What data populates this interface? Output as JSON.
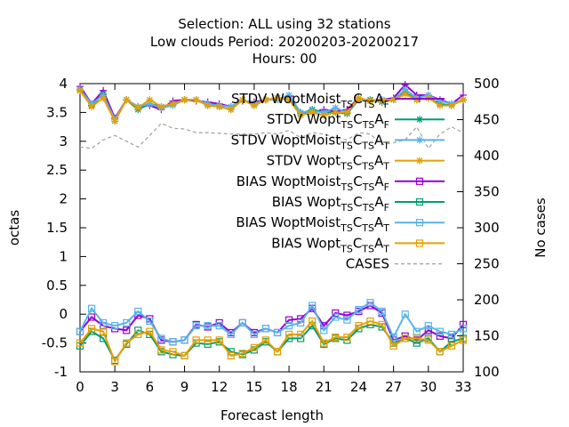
{
  "chart_data": {
    "type": "line",
    "title_lines": [
      "Selection: ALL using    32 stations",
      "Low clouds   Period: 20200203-20200217",
      "Hours:  00"
    ],
    "xlabel": "Forecast length",
    "ylabel": "octas",
    "y2label": "No cases",
    "xlim": [
      0,
      33
    ],
    "ylim": [
      -1,
      4
    ],
    "y2lim": [
      100,
      500
    ],
    "xticks": [
      "0",
      "3",
      "6",
      "9",
      "12",
      "15",
      "18",
      "21",
      "24",
      "27",
      "30",
      "33"
    ],
    "yticks": [
      "-1",
      "-0.5",
      "0",
      "0.5",
      "1",
      "1.5",
      "2",
      "2.5",
      "3",
      "3.5",
      "4"
    ],
    "y2ticks": [
      "100",
      "150",
      "200",
      "250",
      "300",
      "350",
      "400",
      "450",
      "500"
    ],
    "grid": false,
    "legend_position": "top-right",
    "x": [
      0,
      1,
      2,
      3,
      4,
      5,
      6,
      7,
      8,
      9,
      10,
      11,
      12,
      13,
      14,
      15,
      16,
      17,
      18,
      19,
      20,
      21,
      22,
      23,
      24,
      25,
      26,
      27,
      28,
      29,
      30,
      31,
      32,
      33
    ],
    "series": [
      {
        "name": "STDV WoptMoist_TSC_TSA_F",
        "label_main": "STDV WoptMoist",
        "label_sub": [
          "TS",
          "C",
          "TS",
          "A",
          "F"
        ],
        "axis": "y1",
        "color": "#9400d3",
        "marker": "plus",
        "values": [
          3.95,
          3.65,
          3.88,
          3.4,
          3.72,
          3.6,
          3.62,
          3.55,
          3.7,
          3.72,
          3.7,
          3.68,
          3.65,
          3.6,
          3.7,
          3.68,
          3.72,
          3.72,
          3.78,
          3.5,
          3.5,
          3.55,
          3.52,
          3.55,
          3.75,
          3.7,
          3.72,
          3.75,
          3.98,
          3.8,
          3.8,
          3.72,
          3.65,
          3.8
        ]
      },
      {
        "name": "STDV Wopt_TSC_TSA_F",
        "label_main": "STDV Wopt",
        "label_sub": [
          "TS",
          "C",
          "TS",
          "A",
          "F"
        ],
        "axis": "y1",
        "color": "#009e73",
        "marker": "star",
        "values": [
          3.88,
          3.62,
          3.82,
          3.35,
          3.72,
          3.55,
          3.65,
          3.6,
          3.65,
          3.72,
          3.72,
          3.62,
          3.6,
          3.55,
          3.72,
          3.62,
          3.72,
          3.75,
          3.72,
          3.48,
          3.55,
          3.5,
          3.5,
          3.48,
          3.72,
          3.72,
          3.68,
          3.72,
          3.85,
          3.72,
          3.75,
          3.65,
          3.62,
          3.72
        ]
      },
      {
        "name": "STDV WoptMoist_TSC_TSA_T",
        "label_main": "STDV WoptMoist",
        "label_sub": [
          "TS",
          "C",
          "TS",
          "A",
          "T"
        ],
        "axis": "y1",
        "color": "#56b4e9",
        "marker": "star",
        "values": [
          3.9,
          3.65,
          3.8,
          3.38,
          3.72,
          3.6,
          3.65,
          3.58,
          3.62,
          3.72,
          3.72,
          3.65,
          3.62,
          3.6,
          3.72,
          3.65,
          3.72,
          3.72,
          3.8,
          3.5,
          3.52,
          3.5,
          3.58,
          3.5,
          3.72,
          3.7,
          3.72,
          3.72,
          3.9,
          3.75,
          3.8,
          3.7,
          3.65,
          3.72
        ]
      },
      {
        "name": "STDV Wopt_TSC_TSA_T",
        "label_main": "STDV Wopt",
        "label_sub": [
          "TS",
          "C",
          "TS",
          "A",
          "T"
        ],
        "axis": "y1",
        "color": "#e69f00",
        "marker": "star",
        "values": [
          3.88,
          3.6,
          3.75,
          3.35,
          3.72,
          3.58,
          3.72,
          3.6,
          3.65,
          3.72,
          3.72,
          3.62,
          3.6,
          3.55,
          3.72,
          3.62,
          3.72,
          3.75,
          3.72,
          3.45,
          3.5,
          3.45,
          3.5,
          3.5,
          3.75,
          3.7,
          3.7,
          3.72,
          3.82,
          3.72,
          3.75,
          3.62,
          3.62,
          3.72
        ]
      },
      {
        "name": "BIAS WoptMoist_TSC_TSA_F",
        "label_main": "BIAS WoptMoist",
        "label_sub": [
          "TS",
          "C",
          "TS",
          "A",
          "F"
        ],
        "axis": "y1",
        "color": "#9400d3",
        "marker": "square",
        "values": [
          -0.3,
          -0.05,
          -0.2,
          -0.25,
          -0.28,
          -0.02,
          -0.08,
          -0.45,
          -0.48,
          -0.45,
          -0.18,
          -0.22,
          -0.15,
          -0.32,
          -0.15,
          -0.32,
          -0.25,
          -0.32,
          -0.1,
          -0.08,
          0.1,
          -0.2,
          0.02,
          -0.02,
          0.05,
          0.15,
          0.02,
          -0.45,
          -0.38,
          -0.45,
          -0.28,
          -0.38,
          -0.42,
          -0.18
        ]
      },
      {
        "name": "BIAS Wopt_TSC_TSA_F",
        "label_main": "BIAS Wopt",
        "label_sub": [
          "TS",
          "C",
          "TS",
          "A",
          "F"
        ],
        "axis": "y1",
        "color": "#009e73",
        "marker": "square",
        "values": [
          -0.55,
          -0.3,
          -0.42,
          -0.8,
          -0.52,
          -0.28,
          -0.35,
          -0.65,
          -0.7,
          -0.72,
          -0.5,
          -0.52,
          -0.48,
          -0.65,
          -0.7,
          -0.62,
          -0.48,
          -0.65,
          -0.42,
          -0.42,
          -0.2,
          -0.52,
          -0.42,
          -0.45,
          -0.25,
          -0.18,
          -0.22,
          -0.5,
          -0.42,
          -0.5,
          -0.42,
          -0.65,
          -0.48,
          -0.42
        ]
      },
      {
        "name": "BIAS WoptMoist_TSC_TSA_T",
        "label_main": "BIAS WoptMoist",
        "label_sub": [
          "TS",
          "C",
          "TS",
          "A",
          "T"
        ],
        "axis": "y1",
        "color": "#56b4e9",
        "marker": "square",
        "values": [
          -0.3,
          0.1,
          -0.15,
          -0.2,
          -0.15,
          0.05,
          -0.12,
          -0.42,
          -0.48,
          -0.45,
          -0.2,
          -0.2,
          -0.2,
          -0.35,
          -0.15,
          -0.35,
          -0.25,
          -0.32,
          -0.2,
          -0.15,
          0.15,
          -0.28,
          -0.05,
          -0.1,
          0.08,
          0.2,
          0.05,
          -0.4,
          0.0,
          -0.3,
          -0.2,
          -0.3,
          -0.35,
          -0.25
        ]
      },
      {
        "name": "BIAS Wopt_TSC_TSA_T",
        "label_main": "BIAS Wopt",
        "label_sub": [
          "TS",
          "C",
          "TS",
          "A",
          "T"
        ],
        "axis": "y1",
        "color": "#e69f00",
        "marker": "square",
        "values": [
          -0.5,
          -0.25,
          -0.3,
          -0.82,
          -0.5,
          -0.35,
          -0.3,
          -0.62,
          -0.65,
          -0.72,
          -0.45,
          -0.45,
          -0.45,
          -0.72,
          -0.68,
          -0.58,
          -0.45,
          -0.65,
          -0.35,
          -0.35,
          -0.12,
          -0.5,
          -0.4,
          -0.4,
          -0.2,
          -0.12,
          -0.18,
          -0.55,
          -0.42,
          -0.42,
          -0.45,
          -0.65,
          -0.55,
          -0.45
        ]
      },
      {
        "name": "CASES",
        "label_main": "CASES",
        "label_sub": [],
        "axis": "y2",
        "color": "#a0a0a0",
        "marker": "none",
        "dashed": true,
        "values": [
          412,
          410,
          422,
          428,
          420,
          412,
          428,
          445,
          438,
          437,
          432,
          432,
          431,
          430,
          430,
          430,
          432,
          430,
          435,
          425,
          432,
          430,
          425,
          422,
          432,
          430,
          415,
          418,
          422,
          440,
          410,
          430,
          440,
          432
        ]
      }
    ]
  }
}
